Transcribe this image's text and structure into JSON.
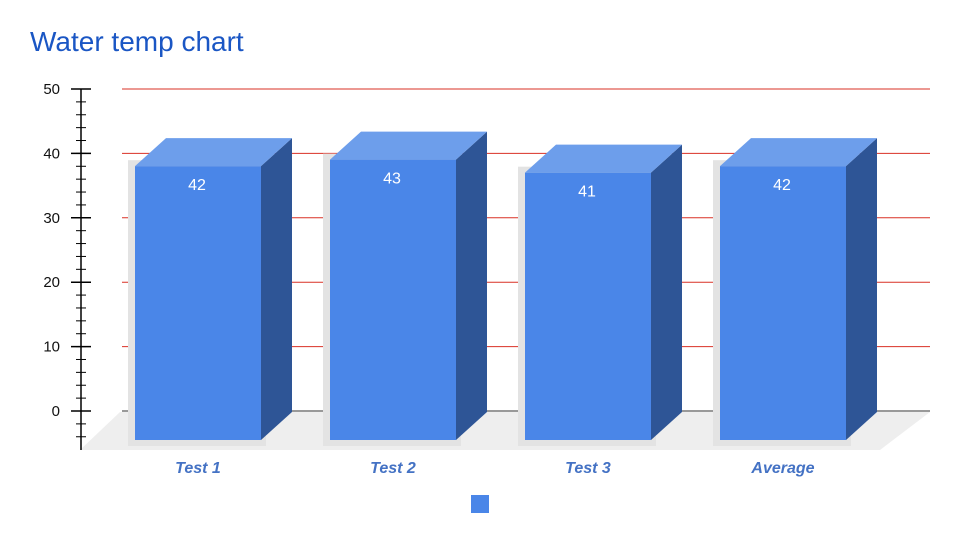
{
  "chart_data": {
    "type": "bar",
    "title": "Water temp chart",
    "categories": [
      "Test 1",
      "Test 2",
      "Test 3",
      "Average"
    ],
    "series": [
      {
        "values": [
          42,
          43,
          41,
          42
        ]
      }
    ],
    "data_labels": [
      "42",
      "43",
      "41",
      "42"
    ],
    "y_ticks": [
      0,
      10,
      20,
      30,
      40,
      50
    ],
    "y_tick_labels": [
      "0",
      "10",
      "20",
      "30",
      "40",
      "50"
    ],
    "ylim": [
      0,
      50
    ],
    "xlabel": "",
    "ylabel": "",
    "grid": true,
    "three_d": true,
    "legend": "bottom",
    "colors": {
      "bar_front": "#4a86e8",
      "bar_top": "#6d9eeb",
      "bar_side": "#2e5596",
      "gridline": "#d93025",
      "title": "#1a56c4",
      "category_label": "#4472c4",
      "floor": "#eeeeee",
      "shadow": "#e3e3e3"
    }
  }
}
